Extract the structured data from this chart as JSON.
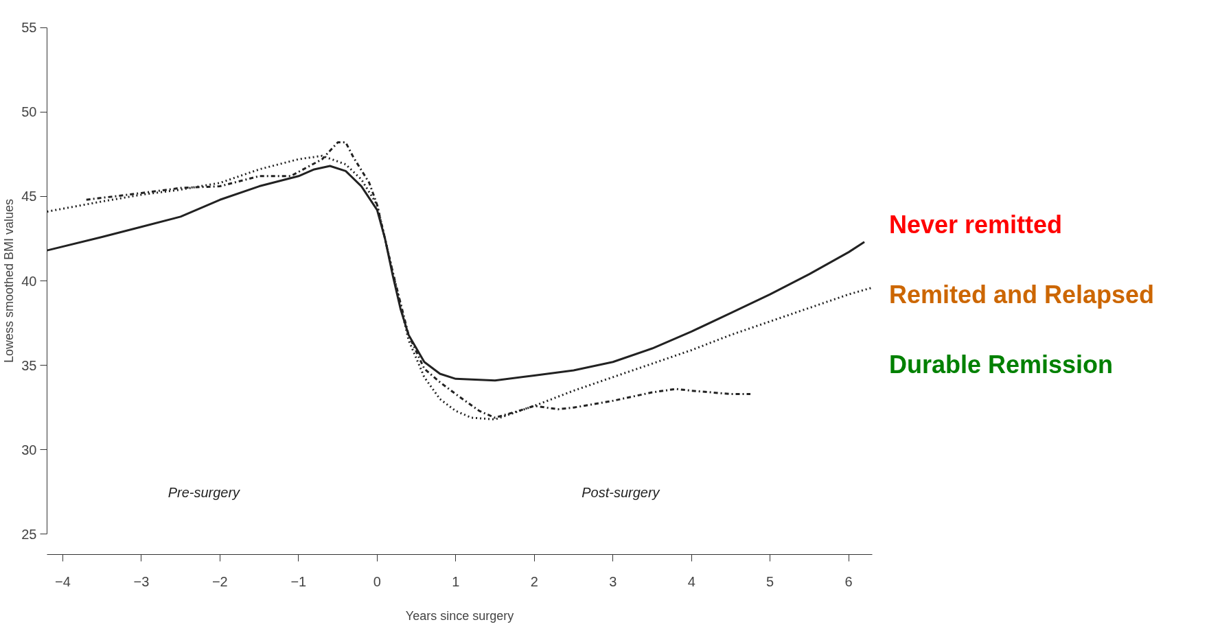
{
  "chart_data": {
    "type": "line",
    "xlabel": "Years since surgery",
    "ylabel": "Lowess smoothed BMI values",
    "xlim": [
      -4.2,
      6.3
    ],
    "ylim": [
      25,
      55
    ],
    "xticks": [
      -4,
      -3,
      -2,
      -1,
      0,
      1,
      2,
      3,
      4,
      5,
      6
    ],
    "yticks": [
      25,
      30,
      35,
      40,
      45,
      50,
      55
    ],
    "grid": false,
    "series": [
      {
        "color": "#222222",
        "line_style": "solid",
        "x": [
          -4.2,
          -3.5,
          -3,
          -2.5,
          -2,
          -1.5,
          -1,
          -0.8,
          -0.6,
          -0.4,
          -0.2,
          0,
          0.1,
          0.2,
          0.3,
          0.4,
          0.6,
          0.8,
          1,
          1.5,
          2,
          2.5,
          3,
          3.5,
          4,
          4.5,
          5,
          5.5,
          6,
          6.2
        ],
        "values": [
          41.8,
          42.6,
          43.2,
          43.8,
          44.8,
          45.6,
          46.2,
          46.6,
          46.8,
          46.5,
          45.6,
          44.2,
          42.5,
          40.3,
          38.3,
          36.8,
          35.2,
          34.5,
          34.2,
          34.1,
          34.4,
          34.7,
          35.2,
          36.0,
          37.0,
          38.1,
          39.2,
          40.4,
          41.7,
          42.3
        ]
      },
      {
        "color": "#222222",
        "line_style": "dotted",
        "x": [
          -4.2,
          -3.5,
          -3,
          -2.5,
          -2,
          -1.5,
          -1,
          -0.7,
          -0.4,
          -0.2,
          0,
          0.2,
          0.4,
          0.6,
          0.8,
          1,
          1.2,
          1.5,
          2,
          2.5,
          3,
          3.5,
          4,
          4.5,
          5,
          5.5,
          6,
          6.3
        ],
        "values": [
          44.1,
          44.7,
          45.1,
          45.4,
          45.8,
          46.6,
          47.2,
          47.4,
          46.9,
          46.0,
          44.5,
          40.5,
          36.5,
          34.3,
          33.0,
          32.3,
          31.9,
          31.8,
          32.6,
          33.5,
          34.3,
          35.1,
          35.9,
          36.8,
          37.6,
          38.4,
          39.2,
          39.6
        ]
      },
      {
        "color": "#222222",
        "line_style": "dashdot",
        "x": [
          -3.7,
          -3,
          -2.5,
          -2,
          -1.5,
          -1.1,
          -0.7,
          -0.5,
          -0.4,
          -0.3,
          -0.1,
          0,
          0.2,
          0.4,
          0.6,
          0.8,
          1,
          1.3,
          1.5,
          1.8,
          2,
          2.3,
          2.5,
          3,
          3.5,
          3.8,
          4,
          4.5,
          4.75
        ],
        "values": [
          44.8,
          45.2,
          45.5,
          45.6,
          46.2,
          46.2,
          47.2,
          48.2,
          48.2,
          47.3,
          45.8,
          44.5,
          40.5,
          36.8,
          34.8,
          34.0,
          33.3,
          32.3,
          31.9,
          32.3,
          32.6,
          32.4,
          32.5,
          32.9,
          33.4,
          33.6,
          33.5,
          33.3,
          33.3
        ]
      }
    ],
    "annotations": [
      "Pre-surgery",
      "Post-surgery",
      "Never remitted",
      "Remited and Relapsed",
      "Durable Remission"
    ]
  }
}
